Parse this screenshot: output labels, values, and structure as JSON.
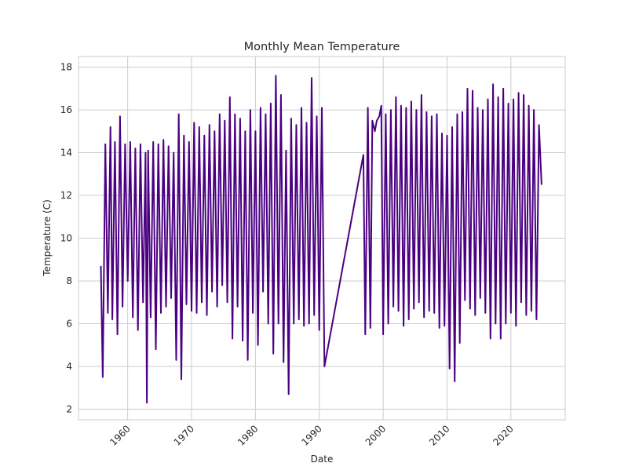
{
  "chart_data": {
    "type": "line",
    "title": "Monthly Mean Temperature",
    "xlabel": "Date",
    "ylabel": "Temperature (C)",
    "xlim": [
      1952.3,
      2028.5
    ],
    "ylim": [
      1.5,
      18.5
    ],
    "x_ticks": [
      1960,
      1970,
      1980,
      1990,
      2000,
      2010,
      2020
    ],
    "y_ticks": [
      2,
      4,
      6,
      8,
      10,
      12,
      14,
      16,
      18
    ],
    "grid": true,
    "line_color": "#4b0082",
    "series": [
      {
        "x": [
          1955.8,
          1956.1,
          1956.5,
          1956.9,
          1957.3,
          1957.6,
          1958.0,
          1958.4,
          1958.8,
          1959.2,
          1959.6,
          1960.0,
          1960.4,
          1960.8,
          1961.2,
          1961.6,
          1962.0,
          1962.4,
          1962.8,
          1963.0,
          1963.2,
          1963.6,
          1964.0,
          1964.4,
          1964.8,
          1965.2,
          1965.6,
          1966.0,
          1966.4,
          1966.8,
          1967.2,
          1967.6,
          1968.0,
          1968.4,
          1968.8,
          1969.2,
          1969.6,
          1970.0,
          1970.4,
          1970.8,
          1971.2,
          1971.6,
          1972.0,
          1972.4,
          1972.8,
          1973.2,
          1973.6,
          1974.0,
          1974.4,
          1974.8,
          1975.2,
          1975.6,
          1976.0,
          1976.4,
          1976.8,
          1977.2,
          1977.6,
          1978.0,
          1978.4,
          1978.8,
          1979.2,
          1979.6,
          1980.0,
          1980.4,
          1980.8,
          1981.2,
          1981.6,
          1982.0,
          1982.4,
          1982.8,
          1983.2,
          1983.6,
          1984.0,
          1984.4,
          1984.8,
          1985.2,
          1985.6,
          1986.0,
          1986.4,
          1986.8,
          1987.2,
          1987.6,
          1988.0,
          1988.4,
          1988.8,
          1989.2,
          1989.6,
          1990.0,
          1990.4,
          1990.8,
          1996.9,
          1997.2,
          1997.6,
          1998.0,
          1998.3,
          1998.7,
          1999.0,
          1999.4,
          1999.7,
          2000.0,
          2000.4,
          2000.8,
          2001.2,
          2001.6,
          2002.0,
          2002.4,
          2002.8,
          2003.2,
          2003.6,
          2004.0,
          2004.4,
          2004.8,
          2005.2,
          2005.6,
          2006.0,
          2006.4,
          2006.8,
          2007.2,
          2007.6,
          2008.0,
          2008.4,
          2008.8,
          2009.2,
          2009.6,
          2010.0,
          2010.4,
          2010.8,
          2011.2,
          2011.6,
          2012.0,
          2012.4,
          2012.8,
          2013.2,
          2013.6,
          2014.0,
          2014.4,
          2014.8,
          2015.2,
          2015.6,
          2016.0,
          2016.4,
          2016.8,
          2017.2,
          2017.6,
          2018.0,
          2018.4,
          2018.8,
          2019.2,
          2019.6,
          2020.0,
          2020.4,
          2020.8,
          2021.2,
          2021.6,
          2022.0,
          2022.4,
          2022.8,
          2023.2,
          2023.6,
          2024.0,
          2024.4,
          2024.8
        ],
        "y": [
          8.7,
          3.5,
          14.4,
          6.5,
          15.2,
          6.2,
          14.5,
          5.5,
          15.7,
          6.8,
          14.4,
          8.0,
          14.5,
          6.3,
          14.2,
          5.7,
          14.4,
          7.0,
          14.0,
          2.3,
          14.1,
          6.3,
          14.5,
          4.8,
          14.4,
          6.5,
          14.6,
          6.8,
          14.3,
          7.2,
          14.0,
          4.3,
          15.8,
          3.4,
          14.8,
          6.9,
          14.5,
          6.6,
          15.4,
          6.5,
          15.2,
          7.0,
          14.8,
          6.4,
          15.3,
          7.5,
          15.0,
          6.8,
          15.8,
          7.8,
          15.5,
          7.0,
          16.6,
          5.3,
          15.8,
          6.8,
          15.6,
          5.2,
          15.0,
          4.3,
          16.0,
          6.5,
          15.0,
          5.0,
          16.1,
          7.5,
          15.8,
          6.0,
          16.3,
          4.6,
          17.6,
          6.0,
          16.7,
          4.2,
          14.1,
          2.7,
          15.6,
          6.0,
          15.3,
          6.2,
          16.1,
          5.9,
          15.4,
          6.0,
          17.5,
          6.4,
          15.7,
          5.7,
          16.1,
          4.0,
          13.9,
          5.5,
          16.1,
          5.8,
          15.5,
          15.0,
          15.5,
          15.7,
          16.2,
          5.5,
          15.8,
          6.0,
          16.0,
          6.8,
          16.6,
          6.6,
          16.2,
          5.9,
          16.1,
          6.2,
          16.4,
          6.7,
          16.0,
          7.0,
          16.7,
          6.3,
          15.9,
          6.6,
          15.7,
          6.5,
          15.8,
          5.8,
          14.9,
          5.9,
          14.8,
          3.9,
          15.2,
          3.3,
          15.8,
          5.1,
          15.9,
          7.1,
          17.0,
          6.7,
          16.9,
          6.4,
          16.1,
          7.2,
          16.0,
          6.5,
          16.5,
          5.3,
          17.2,
          6.0,
          16.6,
          5.3,
          17.0,
          6.0,
          16.3,
          6.5,
          16.5,
          5.9,
          16.8,
          7.0,
          16.7,
          6.4,
          16.2,
          6.6,
          16.0,
          6.2,
          15.3,
          12.5
        ]
      }
    ]
  }
}
